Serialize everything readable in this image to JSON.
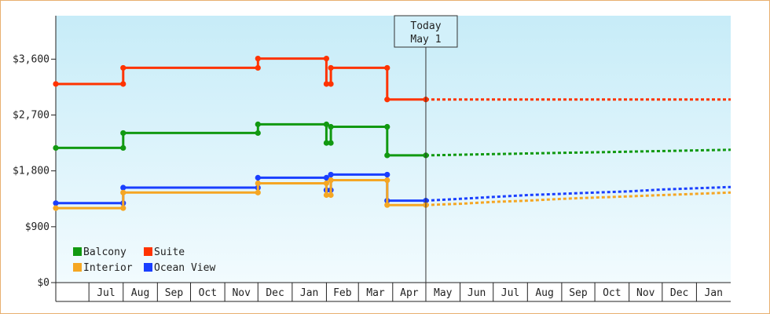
{
  "chart_data": {
    "type": "line",
    "step": true,
    "title": "",
    "xlabel": "",
    "ylabel": "",
    "ylim": [
      0,
      4300
    ],
    "y_ticks": [
      {
        "value": 0,
        "label": "$0"
      },
      {
        "value": 900,
        "label": "$900"
      },
      {
        "value": 1800,
        "label": "$1,800"
      },
      {
        "value": 2700,
        "label": "$2,700"
      },
      {
        "value": 3600,
        "label": "$3,600"
      }
    ],
    "x_range": [
      "2023-06-01",
      "2025-02-01"
    ],
    "months": [
      {
        "start": "2023-07-01",
        "label": "Jul"
      },
      {
        "start": "2023-08-01",
        "label": "Aug"
      },
      {
        "start": "2023-09-01",
        "label": "Sep"
      },
      {
        "start": "2023-10-01",
        "label": "Oct"
      },
      {
        "start": "2023-11-01",
        "label": "Nov"
      },
      {
        "start": "2023-12-01",
        "label": "Dec"
      },
      {
        "start": "2024-01-01",
        "label": "Jan"
      },
      {
        "start": "2024-02-01",
        "label": "Feb"
      },
      {
        "start": "2024-03-01",
        "label": "Mar"
      },
      {
        "start": "2024-04-01",
        "label": "Apr"
      },
      {
        "start": "2024-05-01",
        "label": "May"
      },
      {
        "start": "2024-06-01",
        "label": "Jun"
      },
      {
        "start": "2024-07-01",
        "label": "Jul"
      },
      {
        "start": "2024-08-01",
        "label": "Aug"
      },
      {
        "start": "2024-09-01",
        "label": "Sep"
      },
      {
        "start": "2024-10-01",
        "label": "Oct"
      },
      {
        "start": "2024-11-01",
        "label": "Nov"
      },
      {
        "start": "2024-12-01",
        "label": "Dec"
      },
      {
        "start": "2025-01-01",
        "label": "Jan"
      }
    ],
    "today": {
      "date": "2024-05-01",
      "line1": "Today",
      "line2": "May 1"
    },
    "series": [
      {
        "name": "Suite",
        "color": "#ff3300",
        "history": [
          {
            "x": "2023-06-01",
            "y": 3200
          },
          {
            "x": "2023-08-01",
            "y": 3200
          },
          {
            "x": "2023-08-01",
            "y": 3460
          },
          {
            "x": "2023-12-01",
            "y": 3460
          },
          {
            "x": "2023-12-01",
            "y": 3610
          },
          {
            "x": "2024-02-01",
            "y": 3610
          },
          {
            "x": "2024-02-01",
            "y": 3200
          },
          {
            "x": "2024-02-05",
            "y": 3200
          },
          {
            "x": "2024-02-05",
            "y": 3460
          },
          {
            "x": "2024-03-27",
            "y": 3460
          },
          {
            "x": "2024-03-27",
            "y": 2950
          },
          {
            "x": "2024-05-01",
            "y": 2950
          }
        ],
        "forecast": [
          {
            "x": "2024-05-01",
            "y": 2950
          },
          {
            "x": "2025-02-01",
            "y": 2950
          }
        ]
      },
      {
        "name": "Balcony",
        "color": "#119911",
        "history": [
          {
            "x": "2023-06-01",
            "y": 2170
          },
          {
            "x": "2023-08-01",
            "y": 2170
          },
          {
            "x": "2023-08-01",
            "y": 2410
          },
          {
            "x": "2023-12-01",
            "y": 2410
          },
          {
            "x": "2023-12-01",
            "y": 2550
          },
          {
            "x": "2024-02-01",
            "y": 2550
          },
          {
            "x": "2024-02-01",
            "y": 2250
          },
          {
            "x": "2024-02-05",
            "y": 2250
          },
          {
            "x": "2024-02-05",
            "y": 2510
          },
          {
            "x": "2024-03-27",
            "y": 2510
          },
          {
            "x": "2024-03-27",
            "y": 2050
          },
          {
            "x": "2024-05-01",
            "y": 2050
          }
        ],
        "forecast": [
          {
            "x": "2024-05-01",
            "y": 2050
          },
          {
            "x": "2024-06-01",
            "y": 2060
          },
          {
            "x": "2024-07-01",
            "y": 2070
          },
          {
            "x": "2024-08-01",
            "y": 2080
          },
          {
            "x": "2024-09-01",
            "y": 2090
          },
          {
            "x": "2024-10-01",
            "y": 2100
          },
          {
            "x": "2024-11-01",
            "y": 2110
          },
          {
            "x": "2024-12-01",
            "y": 2120
          },
          {
            "x": "2025-01-01",
            "y": 2130
          },
          {
            "x": "2025-02-01",
            "y": 2140
          }
        ]
      },
      {
        "name": "Ocean View",
        "color": "#1a3fff",
        "history": [
          {
            "x": "2023-06-01",
            "y": 1280
          },
          {
            "x": "2023-08-01",
            "y": 1280
          },
          {
            "x": "2023-08-01",
            "y": 1530
          },
          {
            "x": "2023-12-01",
            "y": 1530
          },
          {
            "x": "2023-12-01",
            "y": 1690
          },
          {
            "x": "2024-02-01",
            "y": 1690
          },
          {
            "x": "2024-02-01",
            "y": 1490
          },
          {
            "x": "2024-02-05",
            "y": 1490
          },
          {
            "x": "2024-02-05",
            "y": 1740
          },
          {
            "x": "2024-03-27",
            "y": 1740
          },
          {
            "x": "2024-03-27",
            "y": 1320
          },
          {
            "x": "2024-05-01",
            "y": 1320
          }
        ],
        "forecast": [
          {
            "x": "2024-05-01",
            "y": 1320
          },
          {
            "x": "2024-06-01",
            "y": 1350
          },
          {
            "x": "2024-07-01",
            "y": 1380
          },
          {
            "x": "2024-08-01",
            "y": 1410
          },
          {
            "x": "2024-09-01",
            "y": 1430
          },
          {
            "x": "2024-10-01",
            "y": 1450
          },
          {
            "x": "2024-11-01",
            "y": 1470
          },
          {
            "x": "2024-12-01",
            "y": 1500
          },
          {
            "x": "2025-01-01",
            "y": 1520
          },
          {
            "x": "2025-02-01",
            "y": 1540
          }
        ]
      },
      {
        "name": "Interior",
        "color": "#f5a623",
        "history": [
          {
            "x": "2023-06-01",
            "y": 1200
          },
          {
            "x": "2023-08-01",
            "y": 1200
          },
          {
            "x": "2023-08-01",
            "y": 1450
          },
          {
            "x": "2023-12-01",
            "y": 1450
          },
          {
            "x": "2023-12-01",
            "y": 1600
          },
          {
            "x": "2024-02-01",
            "y": 1600
          },
          {
            "x": "2024-02-01",
            "y": 1410
          },
          {
            "x": "2024-02-05",
            "y": 1410
          },
          {
            "x": "2024-02-05",
            "y": 1650
          },
          {
            "x": "2024-03-27",
            "y": 1650
          },
          {
            "x": "2024-03-27",
            "y": 1250
          },
          {
            "x": "2024-05-01",
            "y": 1250
          }
        ],
        "forecast": [
          {
            "x": "2024-05-01",
            "y": 1250
          },
          {
            "x": "2024-06-01",
            "y": 1270
          },
          {
            "x": "2024-07-01",
            "y": 1300
          },
          {
            "x": "2024-08-01",
            "y": 1320
          },
          {
            "x": "2024-09-01",
            "y": 1350
          },
          {
            "x": "2024-10-01",
            "y": 1370
          },
          {
            "x": "2024-11-01",
            "y": 1390
          },
          {
            "x": "2024-12-01",
            "y": 1410
          },
          {
            "x": "2025-01-01",
            "y": 1430
          },
          {
            "x": "2025-02-01",
            "y": 1450
          }
        ]
      }
    ],
    "legend": {
      "position": "bottom-left",
      "entries": [
        {
          "name": "Balcony",
          "color": "#119911"
        },
        {
          "name": "Suite",
          "color": "#ff3300"
        },
        {
          "name": "Interior",
          "color": "#f5a623"
        },
        {
          "name": "Ocean View",
          "color": "#1a3fff"
        }
      ]
    }
  }
}
